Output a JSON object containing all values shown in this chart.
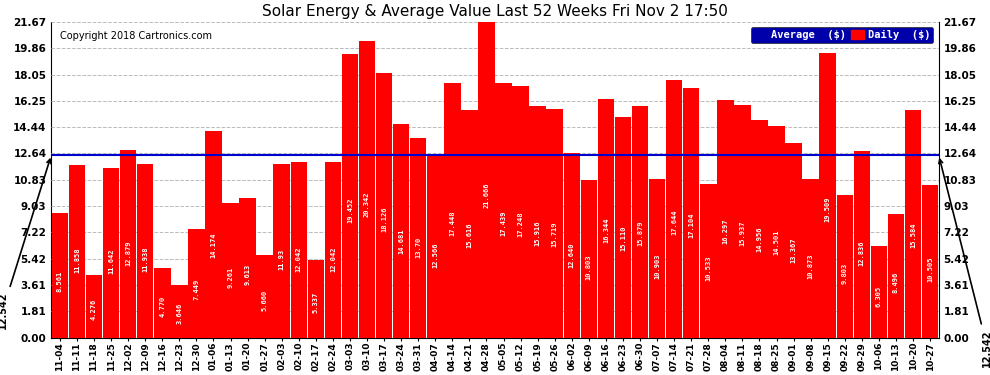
{
  "title": "Solar Energy & Average Value Last 52 Weeks Fri Nov 2 17:50",
  "copyright": "Copyright 2018 Cartronics.com",
  "average_label": "12.542",
  "average_value": 12.542,
  "legend_avg": "Average  ($)",
  "legend_daily": "Daily  ($)",
  "bar_color": "#ff0000",
  "avg_line_color": "#0000cc",
  "background_color": "#ffffff",
  "grid_color": "#bbbbbb",
  "yticks": [
    0.0,
    1.81,
    3.61,
    5.42,
    7.22,
    9.03,
    10.83,
    12.64,
    14.44,
    16.25,
    18.05,
    19.86,
    21.67
  ],
  "categories": [
    "11-04",
    "11-11",
    "11-18",
    "11-25",
    "12-02",
    "12-09",
    "12-16",
    "12-23",
    "12-30",
    "01-06",
    "01-13",
    "01-20",
    "01-27",
    "02-03",
    "02-10",
    "02-17",
    "02-24",
    "03-03",
    "03-10",
    "03-17",
    "03-24",
    "03-31",
    "04-07",
    "04-14",
    "04-21",
    "04-28",
    "05-05",
    "05-12",
    "05-19",
    "05-26",
    "06-02",
    "06-09",
    "06-16",
    "06-23",
    "06-30",
    "07-07",
    "07-14",
    "07-21",
    "07-28",
    "08-04",
    "08-11",
    "08-18",
    "08-25",
    "09-01",
    "09-08",
    "09-15",
    "09-22",
    "09-29",
    "10-06",
    "10-13",
    "10-20",
    "10-27"
  ],
  "values": [
    8.561,
    11.858,
    4.276,
    11.642,
    12.879,
    11.938,
    4.77,
    3.646,
    7.449,
    14.174,
    9.261,
    9.613,
    5.66,
    11.93,
    12.042,
    5.337,
    12.042,
    19.452,
    20.342,
    18.126,
    14.681,
    13.7,
    12.566,
    17.448,
    15.616,
    21.666,
    17.439,
    17.248,
    15.916,
    15.719,
    12.64,
    10.803,
    16.344,
    15.11,
    15.879,
    10.903,
    17.644,
    17.104,
    10.533,
    16.297,
    15.937,
    14.956,
    14.501,
    13.367,
    10.873,
    19.509,
    9.803,
    12.836,
    6.305,
    8.496,
    15.584,
    10.505
  ],
  "bar_values_text": [
    "8.561",
    "11.858",
    "4.276",
    "11.642",
    "12.879",
    "11.938",
    "4.770",
    "3.646",
    "7.449",
    "14.174",
    "9.261",
    "9.613",
    "5.660",
    "11.93",
    "12.042",
    "5.337",
    "12.042",
    "19.452",
    "20.342",
    "18.126",
    "14.681",
    "13.70",
    "12.566",
    "17.448",
    "15.616",
    "21.666",
    "17.439",
    "17.248",
    "15.916",
    "15.719",
    "12.640",
    "10.803",
    "16.344",
    "15.110",
    "15.879",
    "10.903",
    "17.644",
    "17.104",
    "10.533",
    "16.297",
    "15.937",
    "14.956",
    "14.501",
    "13.367",
    "10.873",
    "19.509",
    "9.803",
    "12.836",
    "6.305",
    "8.496",
    "15.584",
    "10.505"
  ],
  "ylim": [
    0.0,
    21.67
  ],
  "figsize": [
    9.9,
    3.75
  ],
  "dpi": 100
}
